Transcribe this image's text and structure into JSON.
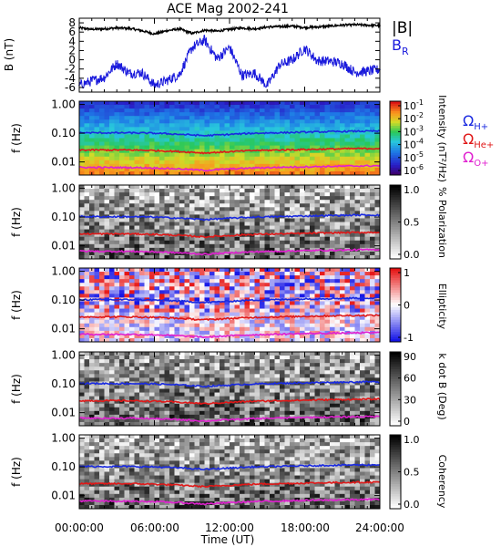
{
  "figure": {
    "title": "ACE Mag 2002-241",
    "x_tick_labels": [
      "00:00:00",
      "06:00:00",
      "12:00:00",
      "18:00:00",
      "24:00:00"
    ],
    "x_label": "Time (UT)"
  },
  "chart_data": [
    {
      "type": "line",
      "panel": "magnetic-field",
      "ylabel": "B (nT)",
      "ylim": [
        -7,
        9
      ],
      "y_ticks": [
        -6,
        -4,
        -2,
        0,
        2,
        4,
        6,
        8
      ],
      "x_range_hours": [
        0,
        24
      ],
      "series": [
        {
          "name": "|B|",
          "color": "#000000",
          "x": [
            0,
            1,
            2,
            3,
            4,
            5,
            6,
            7,
            8,
            9,
            10,
            11,
            12,
            13,
            14,
            15,
            16,
            17,
            18,
            19,
            20,
            21,
            22,
            23,
            24
          ],
          "y": [
            6.9,
            6.6,
            6.7,
            6.9,
            6.8,
            6.3,
            5.6,
            6.3,
            6.7,
            5.7,
            6.4,
            6.2,
            6.6,
            6.9,
            6.7,
            7.1,
            7.2,
            7.3,
            7.0,
            7.1,
            7.3,
            7.5,
            7.6,
            7.5,
            7.4
          ]
        },
        {
          "name": "B_R",
          "color": "#1a1adc",
          "x": [
            0,
            1,
            2,
            3,
            4,
            5,
            6,
            7,
            8,
            9,
            10,
            11,
            12,
            13,
            14,
            15,
            16,
            17,
            18,
            19,
            20,
            21,
            22,
            23,
            24
          ],
          "y": [
            -5.5,
            -4.6,
            -3.8,
            -0.8,
            -2.9,
            -2.8,
            -5.5,
            -4.5,
            -3.2,
            2.6,
            4.3,
            0.2,
            2.7,
            -3.4,
            -2.9,
            -5.6,
            -1.1,
            -0.1,
            2.5,
            -0.2,
            -0.3,
            -0.8,
            -2.7,
            -2.5,
            -2.1
          ]
        }
      ]
    },
    {
      "type": "heatmap",
      "panel": "power-spectrum",
      "ylabel": "f (Hz)",
      "y_scale": "log",
      "y_tick_labels": [
        "1.00",
        "0.10",
        "0.01"
      ],
      "colorbar_label": "Intensity (nT²/Hz)",
      "colorbar_tick_labels": [
        "10",
        "10",
        "10",
        "10",
        "10",
        "10"
      ],
      "colorbar_tick_exponents": [
        "-1",
        "-2",
        "-3",
        "-4",
        "-5",
        "-6"
      ],
      "colorbar_range": [
        -6.5,
        -0.5
      ],
      "colormap": "rainbow"
    },
    {
      "type": "heatmap",
      "panel": "polarization",
      "ylabel": "f (Hz)",
      "y_scale": "log",
      "y_tick_labels": [
        "1.00",
        "0.10",
        "0.01"
      ],
      "colorbar_label": "% Polarization",
      "colorbar_tick_labels": [
        "1.0",
        "0.5",
        "0.0"
      ],
      "colorbar_range": [
        0,
        1
      ],
      "colormap": "gray"
    },
    {
      "type": "heatmap",
      "panel": "ellipticity",
      "ylabel": "f (Hz)",
      "y_scale": "log",
      "y_tick_labels": [
        "1.00",
        "0.10",
        "0.01"
      ],
      "colorbar_label": "Ellipticity",
      "colorbar_tick_labels": [
        "1",
        "0",
        "-1"
      ],
      "colorbar_range": [
        -1,
        1
      ],
      "colormap": "blue-white-red"
    },
    {
      "type": "heatmap",
      "panel": "k-dot-b",
      "ylabel": "f (Hz)",
      "y_scale": "log",
      "y_tick_labels": [
        "1.00",
        "0.10",
        "0.01"
      ],
      "colorbar_label": "k dot B (Deg)",
      "colorbar_tick_labels": [
        "90",
        "60",
        "30",
        "0"
      ],
      "colorbar_range": [
        0,
        90
      ],
      "colormap": "gray"
    },
    {
      "type": "heatmap",
      "panel": "coherency",
      "ylabel": "f (Hz)",
      "y_scale": "log",
      "y_tick_labels": [
        "1.00",
        "0.10",
        "0.01"
      ],
      "colorbar_label": "Coherency",
      "colorbar_tick_labels": [
        "1.0",
        "0.5",
        "0.0"
      ],
      "colorbar_range": [
        0,
        1
      ],
      "colormap": "gray"
    }
  ],
  "gyrofrequency_lines": [
    {
      "name": "Ω_H+",
      "color": "#1a2ae0",
      "x": [
        0,
        2,
        4,
        6,
        8,
        10,
        12,
        14,
        16,
        18,
        20,
        22,
        24
      ],
      "f_hz": [
        0.104,
        0.103,
        0.103,
        0.1,
        0.092,
        0.082,
        0.091,
        0.1,
        0.104,
        0.109,
        0.113,
        0.117,
        0.118
      ]
    },
    {
      "name": "Ω_He+",
      "color": "#e01818",
      "x": [
        0,
        2,
        4,
        6,
        8,
        10,
        12,
        14,
        16,
        18,
        20,
        22,
        24
      ],
      "f_hz": [
        0.026,
        0.026,
        0.026,
        0.025,
        0.023,
        0.0205,
        0.0228,
        0.025,
        0.026,
        0.0272,
        0.0282,
        0.029,
        0.0295
      ]
    },
    {
      "name": "Ω_O+",
      "color": "#e020d0",
      "x": [
        0,
        2,
        4,
        6,
        8,
        10,
        12,
        14,
        16,
        18,
        20,
        22,
        24
      ],
      "f_hz": [
        0.0065,
        0.0064,
        0.0064,
        0.0062,
        0.0057,
        0.0051,
        0.0057,
        0.0062,
        0.0065,
        0.0068,
        0.007,
        0.0072,
        0.0074
      ]
    }
  ],
  "legend": {
    "b_total": "|B|",
    "b_r_main": "B",
    "b_r_sub": "R",
    "omega_symbol": "Ω",
    "h_sub": "H+",
    "he_sub": "He+",
    "o_sub": "O+"
  }
}
